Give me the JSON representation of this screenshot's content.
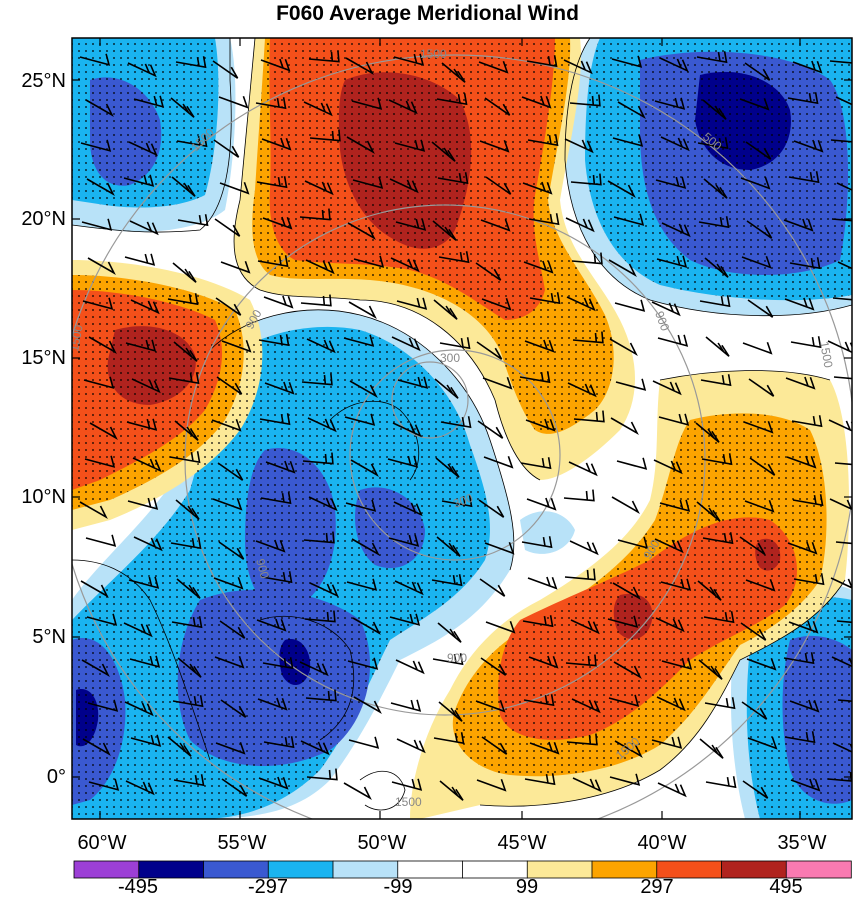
{
  "title": "F060 Average Meridional Wind",
  "latitude_labels": [
    "25°N",
    "20°N",
    "15°N",
    "10°N",
    "5°N",
    "0°"
  ],
  "longitude_labels": [
    "60°W",
    "55°W",
    "50°W",
    "45°W",
    "40°W",
    "35°W"
  ],
  "colorbar": {
    "tick_labels": [
      "-495",
      "-297",
      "-99",
      "99",
      "297",
      "495"
    ],
    "colors": [
      "#9c3fd6",
      "#00008b",
      "#3a59d1",
      "#1ab4f0",
      "#b8e2f8",
      "#ffffff",
      "#ffffff",
      "#fce998",
      "#fca400",
      "#f4501a",
      "#b0231e",
      "#f97ab1"
    ]
  },
  "contour_labels": [
    "1500",
    "1500",
    "1500",
    "1500",
    "1500",
    "1500",
    "900",
    "900",
    "900",
    "900",
    "900",
    "300",
    "300",
    "500"
  ],
  "colors": {
    "strong_positive": "#b0231e",
    "positive": "#f4501a",
    "moderate_positive": "#fca400",
    "weak_positive": "#fce998",
    "neutral": "#ffffff",
    "weak_negative": "#b8e2f8",
    "moderate_negative": "#1ab4f0",
    "negative": "#3a59d1",
    "strong_negative": "#00008b"
  }
}
